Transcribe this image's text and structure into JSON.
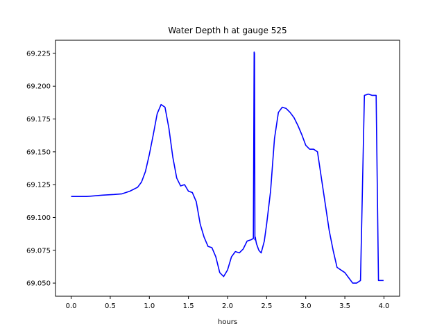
{
  "chart_data": {
    "type": "line",
    "title": "Water Depth h at gauge 525",
    "xlabel": "hours",
    "ylabel": "",
    "xlim": [
      -0.2,
      4.2
    ],
    "ylim": [
      69.04,
      69.235
    ],
    "xticks": [
      0.0,
      0.5,
      1.0,
      1.5,
      2.0,
      2.5,
      3.0,
      3.5,
      4.0
    ],
    "xtick_labels": [
      "0.0",
      "0.5",
      "1.0",
      "1.5",
      "2.0",
      "2.5",
      "3.0",
      "3.5",
      "4.0"
    ],
    "yticks": [
      69.05,
      69.075,
      69.1,
      69.125,
      69.15,
      69.175,
      69.2,
      69.225
    ],
    "ytick_labels": [
      "69.050",
      "69.075",
      "69.100",
      "69.125",
      "69.150",
      "69.175",
      "69.200",
      "69.225"
    ],
    "grid": false,
    "line_color": "#0000ff",
    "series": [
      {
        "x": [
          0.0,
          0.2,
          0.4,
          0.55,
          0.65,
          0.75,
          0.85,
          0.9,
          0.95,
          1.0,
          1.05,
          1.1,
          1.15,
          1.2,
          1.25,
          1.3,
          1.35,
          1.4,
          1.45,
          1.5,
          1.55,
          1.6,
          1.65,
          1.7,
          1.75,
          1.8,
          1.85,
          1.9,
          1.95,
          2.0,
          2.05,
          2.1,
          2.15,
          2.2,
          2.25,
          2.3,
          2.33,
          2.34,
          2.345,
          2.35,
          2.355,
          2.36,
          2.37,
          2.4,
          2.43,
          2.47,
          2.5,
          2.55,
          2.6,
          2.65,
          2.7,
          2.75,
          2.8,
          2.85,
          2.9,
          2.95,
          3.0,
          3.05,
          3.1,
          3.15,
          3.2,
          3.25,
          3.3,
          3.35,
          3.4,
          3.45,
          3.5,
          3.55,
          3.6,
          3.65,
          3.7,
          3.75,
          3.8,
          3.85,
          3.9,
          3.93,
          3.94,
          3.95,
          3.96,
          3.975,
          3.98,
          3.985,
          3.99,
          3.995
        ],
        "y": [
          69.116,
          69.116,
          69.117,
          69.1175,
          69.118,
          69.12,
          69.123,
          69.127,
          69.135,
          69.148,
          69.163,
          69.179,
          69.186,
          69.184,
          69.168,
          69.146,
          69.13,
          69.124,
          69.125,
          69.12,
          69.119,
          69.112,
          69.095,
          69.085,
          69.078,
          69.077,
          69.07,
          69.058,
          69.055,
          69.06,
          69.07,
          69.074,
          69.073,
          69.076,
          69.082,
          69.083,
          69.084,
          69.226,
          69.225,
          69.083,
          69.085,
          69.083,
          69.08,
          69.075,
          69.073,
          69.082,
          69.095,
          69.12,
          69.16,
          69.18,
          69.184,
          69.183,
          69.18,
          69.176,
          69.17,
          69.163,
          69.155,
          69.152,
          69.152,
          69.15,
          69.13,
          69.11,
          69.09,
          69.075,
          69.062,
          69.06,
          69.058,
          69.054,
          69.05,
          69.05,
          69.052,
          69.193,
          69.194,
          69.193,
          69.193,
          69.052,
          69.052,
          69.052,
          69.052,
          69.052,
          69.052,
          69.052,
          69.052,
          69.052
        ]
      }
    ]
  }
}
